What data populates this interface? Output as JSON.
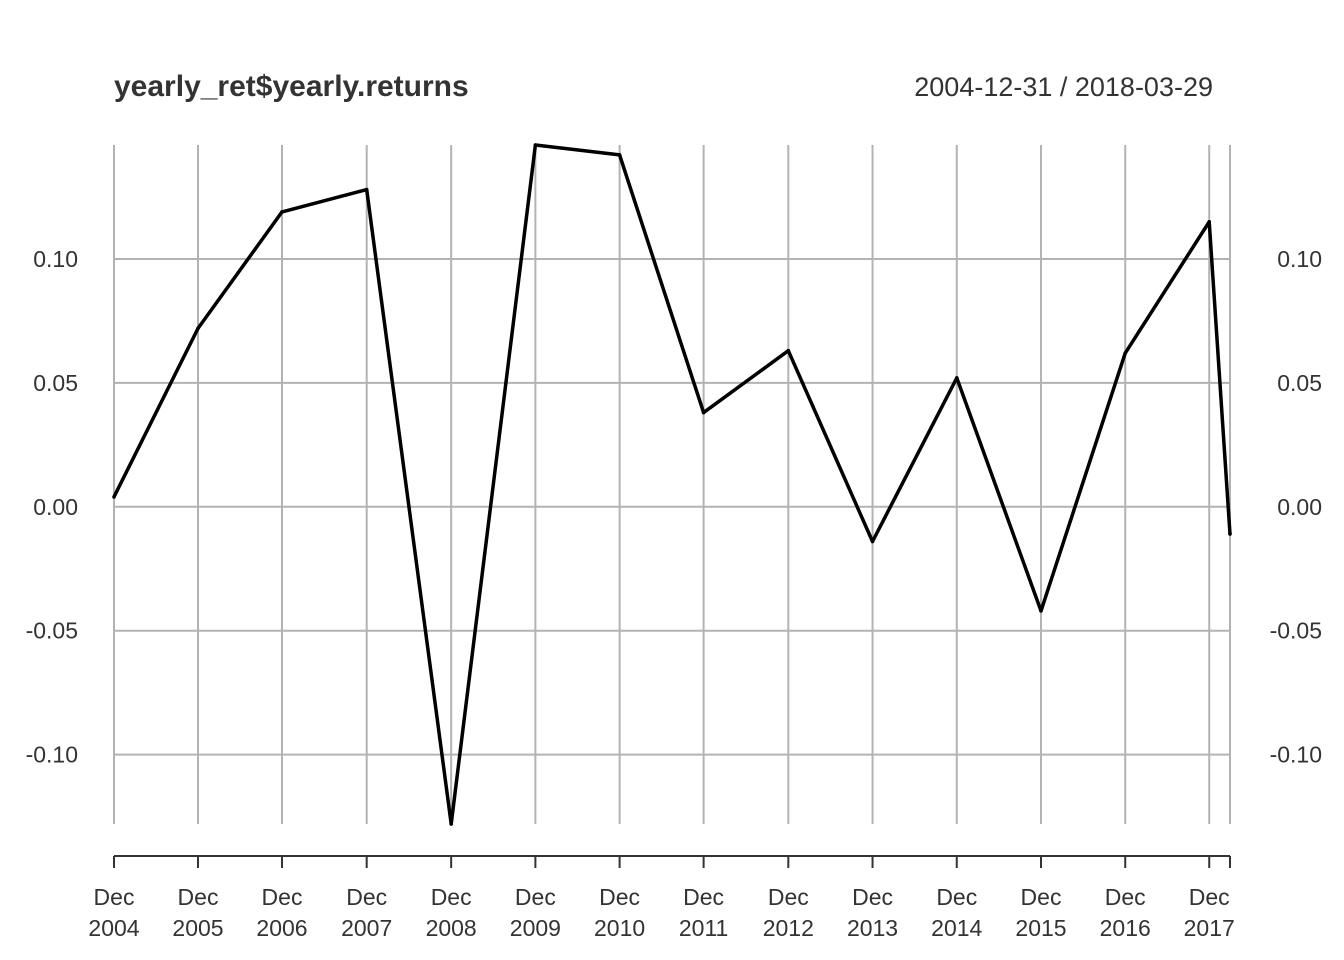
{
  "title": "yearly_ret$yearly.returns",
  "date_range": "2004-12-31 / 2018-03-29",
  "chart_data": {
    "type": "line",
    "title": "yearly_ret$yearly.returns",
    "subtitle": "2004-12-31 / 2018-03-29",
    "xlabel": "",
    "ylabel": "",
    "x": [
      "2004-12-31",
      "2005-12-30",
      "2006-12-29",
      "2007-12-31",
      "2008-12-31",
      "2009-12-31",
      "2010-12-31",
      "2011-12-30",
      "2012-12-31",
      "2013-12-31",
      "2014-12-31",
      "2015-12-31",
      "2016-12-30",
      "2017-12-29",
      "2018-03-29"
    ],
    "series": [
      {
        "values": [
          0.004,
          0.072,
          0.119,
          0.128,
          -0.128,
          0.146,
          0.142,
          0.038,
          0.063,
          -0.014,
          0.052,
          -0.042,
          0.062,
          0.115,
          -0.011
        ]
      }
    ],
    "x_ticks": [
      {
        "line1": "Dec",
        "line2": "2004"
      },
      {
        "line1": "Dec",
        "line2": "2005"
      },
      {
        "line1": "Dec",
        "line2": "2006"
      },
      {
        "line1": "Dec",
        "line2": "2007"
      },
      {
        "line1": "Dec",
        "line2": "2008"
      },
      {
        "line1": "Dec",
        "line2": "2009"
      },
      {
        "line1": "Dec",
        "line2": "2010"
      },
      {
        "line1": "Dec",
        "line2": "2011"
      },
      {
        "line1": "Dec",
        "line2": "2012"
      },
      {
        "line1": "Dec",
        "line2": "2013"
      },
      {
        "line1": "Dec",
        "line2": "2014"
      },
      {
        "line1": "Dec",
        "line2": "2015"
      },
      {
        "line1": "Dec",
        "line2": "2016"
      },
      {
        "line1": "Dec",
        "line2": "2017"
      }
    ],
    "y_ticks": [
      0.1,
      0.05,
      0.0,
      -0.05,
      -0.1
    ],
    "y_tick_labels": [
      "0.10",
      "0.05",
      "0.00",
      "-0.05",
      "-0.10"
    ],
    "ylim": [
      -0.128,
      0.146
    ],
    "grid": true,
    "y_axis_both_sides": true,
    "colors": {
      "line": "#000000",
      "grid": "#b3b3b3",
      "axis": "#333333",
      "text": "#333333"
    }
  }
}
